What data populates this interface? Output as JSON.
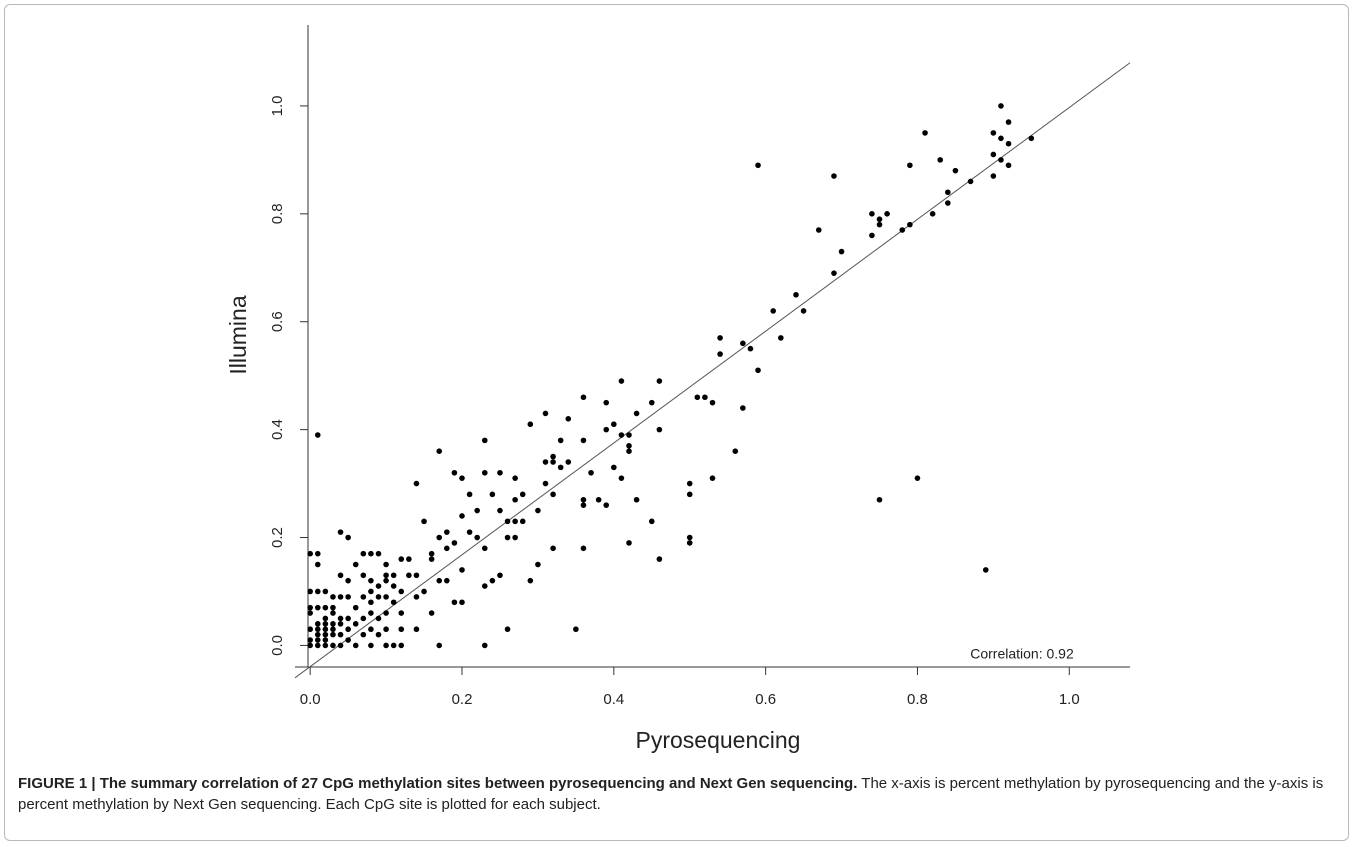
{
  "chart_data": {
    "type": "scatter",
    "xlabel": "Pyrosequencing",
    "ylabel": "Illumina",
    "annotation": "Correlation: 0.92",
    "color": "#000000",
    "xlim": [
      -0.02,
      1.08
    ],
    "ylim": [
      -0.04,
      1.15
    ],
    "xticks": [
      {
        "value": 0,
        "label": "0.0"
      },
      {
        "value": 0.2,
        "label": "0.2"
      },
      {
        "value": 0.4,
        "label": "0.4"
      },
      {
        "value": 0.6,
        "label": "0.6"
      },
      {
        "value": 0.8,
        "label": "0.8"
      },
      {
        "value": 1,
        "label": "1.0"
      }
    ],
    "yticks": [
      {
        "value": 0,
        "label": "0.0"
      },
      {
        "value": 0.2,
        "label": "0.2"
      },
      {
        "value": 0.4,
        "label": "0.4"
      },
      {
        "value": 0.6,
        "label": "0.6"
      },
      {
        "value": 0.8,
        "label": "0.8"
      },
      {
        "value": 1,
        "label": "1.0"
      }
    ],
    "fit_line": {
      "x": [
        -0.02,
        1.08
      ],
      "y": [
        -0.06,
        1.08
      ]
    },
    "x": [
      0.91,
      0.92,
      0.9,
      0.81,
      0.95,
      0.91,
      0.92,
      0.9,
      0.83,
      0.91,
      0.79,
      0.59,
      0.92,
      0.85,
      0.69,
      0.9,
      0.87,
      0.84,
      0.84,
      0.82,
      0.74,
      0.76,
      0.75,
      0.75,
      0.79,
      0.78,
      0.67,
      0.74,
      0.7,
      0.69,
      0.64,
      0.61,
      0.65,
      0.62,
      0.54,
      0.57,
      0.58,
      0.54,
      0.59,
      0.57,
      0.56,
      0.46,
      0.41,
      0.36,
      0.51,
      0.52,
      0.53,
      0.45,
      0.39,
      0.43,
      0.31,
      0.34,
      0.29,
      0.4,
      0.46,
      0.39,
      0.41,
      0.42,
      0.36,
      0.33,
      0.23,
      0.42,
      0.42,
      0.17,
      0.32,
      0.31,
      0.32,
      0.34,
      0.4,
      0.33,
      0.19,
      0.23,
      0.25,
      0.37,
      0.41,
      0.2,
      0.27,
      0.53,
      0.14,
      0.31,
      0.5,
      0.75,
      0.8,
      0.89,
      0.5,
      0.43,
      0.38,
      0.36,
      0.39,
      0.32,
      0.28,
      0.27,
      0.21,
      0.24,
      0.22,
      0.2,
      0.25,
      0.3,
      0.27,
      0.28,
      0.26,
      0.45,
      0.15,
      0.36,
      0.21,
      0.18,
      0.17,
      0.19,
      0.22,
      0.26,
      0.27,
      0.5,
      0.5,
      0.42,
      0.32,
      0.36,
      0.23,
      0.18,
      0.16,
      0.46,
      0.16,
      0.12,
      0.13,
      0.29,
      0.3,
      0.25,
      0.24,
      0.2,
      0.23,
      0.17,
      0.18,
      0.14,
      0.13,
      0.11,
      0.1,
      0.15,
      0.14,
      0.2,
      0.19,
      0.16,
      0.12,
      0.14,
      0.26,
      0.35,
      0.17,
      0.23,
      0.04,
      0.05,
      0.01,
      0.0,
      0.01,
      0.07,
      0.08,
      0.09,
      0.01,
      0.1,
      0.06,
      0.08,
      0.05,
      0.07,
      0.04,
      0.1,
      0.09,
      0.11,
      0.12,
      0.08,
      0.0,
      0.01,
      0.02,
      0.03,
      0.05,
      0.04,
      0.07,
      0.09,
      0.1,
      0.08,
      0.11,
      0.03,
      0.01,
      0.0,
      0.02,
      0.06,
      0.08,
      0.1,
      0.03,
      0.0,
      0.04,
      0.05,
      0.02,
      0.07,
      0.09,
      0.06,
      0.03,
      0.01,
      0.02,
      0.04,
      0.0,
      0.01,
      0.02,
      0.03,
      0.05,
      0.08,
      0.1,
      0.12,
      0.01,
      0.02,
      0.03,
      0.04,
      0.0,
      0.01,
      0.02,
      0.03,
      0.0,
      0.01,
      0.04,
      0.06,
      0.08,
      0.11,
      0.12,
      0.1,
      0.02,
      0.07,
      0.05,
      0.09
    ],
    "values": [
      1.0,
      0.97,
      0.95,
      0.95,
      0.94,
      0.94,
      0.93,
      0.91,
      0.9,
      0.9,
      0.89,
      0.89,
      0.89,
      0.88,
      0.87,
      0.87,
      0.86,
      0.84,
      0.82,
      0.8,
      0.8,
      0.8,
      0.79,
      0.78,
      0.78,
      0.77,
      0.77,
      0.76,
      0.73,
      0.69,
      0.65,
      0.62,
      0.62,
      0.57,
      0.57,
      0.56,
      0.55,
      0.54,
      0.51,
      0.44,
      0.36,
      0.49,
      0.49,
      0.46,
      0.46,
      0.46,
      0.45,
      0.45,
      0.45,
      0.43,
      0.43,
      0.42,
      0.41,
      0.41,
      0.4,
      0.4,
      0.39,
      0.39,
      0.38,
      0.38,
      0.38,
      0.37,
      0.36,
      0.36,
      0.35,
      0.34,
      0.34,
      0.34,
      0.33,
      0.33,
      0.32,
      0.32,
      0.32,
      0.32,
      0.31,
      0.31,
      0.31,
      0.31,
      0.3,
      0.3,
      0.3,
      0.27,
      0.31,
      0.14,
      0.28,
      0.27,
      0.27,
      0.27,
      0.26,
      0.28,
      0.28,
      0.27,
      0.28,
      0.28,
      0.25,
      0.24,
      0.25,
      0.25,
      0.23,
      0.23,
      0.23,
      0.23,
      0.23,
      0.26,
      0.21,
      0.21,
      0.2,
      0.19,
      0.2,
      0.2,
      0.2,
      0.2,
      0.19,
      0.19,
      0.18,
      0.18,
      0.18,
      0.18,
      0.17,
      0.16,
      0.16,
      0.16,
      0.16,
      0.12,
      0.15,
      0.13,
      0.12,
      0.14,
      0.11,
      0.12,
      0.12,
      0.13,
      0.13,
      0.13,
      0.13,
      0.1,
      0.09,
      0.08,
      0.08,
      0.06,
      0.06,
      0.03,
      0.03,
      0.03,
      0.0,
      0.0,
      0.21,
      0.2,
      0.39,
      0.17,
      0.17,
      0.17,
      0.17,
      0.17,
      0.15,
      0.15,
      0.15,
      0.12,
      0.12,
      0.13,
      0.13,
      0.12,
      0.11,
      0.11,
      0.1,
      0.1,
      0.1,
      0.1,
      0.1,
      0.09,
      0.09,
      0.09,
      0.09,
      0.09,
      0.09,
      0.08,
      0.08,
      0.07,
      0.07,
      0.07,
      0.07,
      0.07,
      0.06,
      0.06,
      0.06,
      0.06,
      0.05,
      0.05,
      0.05,
      0.05,
      0.05,
      0.04,
      0.04,
      0.04,
      0.04,
      0.04,
      0.03,
      0.03,
      0.03,
      0.03,
      0.03,
      0.03,
      0.03,
      0.03,
      0.02,
      0.02,
      0.02,
      0.02,
      0.01,
      0.01,
      0.01,
      0.0,
      0.0,
      0.0,
      0.0,
      0.0,
      0.0,
      0.0,
      0.0,
      0.0,
      0.0,
      0.02,
      0.01,
      0.02
    ]
  },
  "caption": {
    "label": "FIGURE 1 | The summary correlation of 27 CpG methylation sites between pyrosequencing and Next Gen sequencing.",
    "text": "The x-axis is percent methylation by pyrosequencing and the y-axis is percent methylation by Next Gen sequencing. Each CpG site is plotted for each subject."
  }
}
